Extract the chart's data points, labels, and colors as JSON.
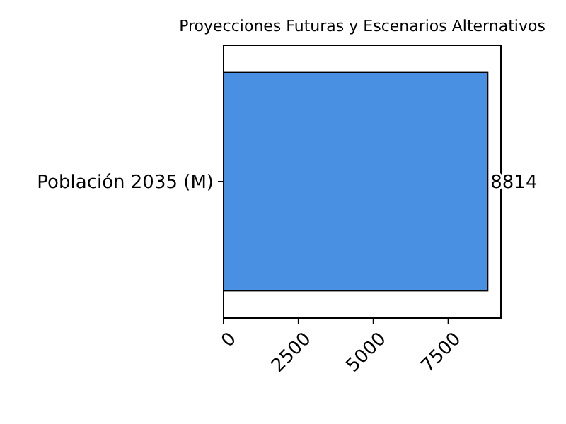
{
  "chart_data": {
    "type": "bar",
    "orientation": "horizontal",
    "title": "Proyecciones Futuras y Escenarios Alternativos",
    "categories": [
      "Población 2035 (M)"
    ],
    "values": [
      8814
    ],
    "color": "#4a90e2",
    "xlim": [
      0,
      9255
    ],
    "xticks": [
      0,
      2500,
      5000,
      7500
    ],
    "data_labels": true,
    "grid": false
  }
}
